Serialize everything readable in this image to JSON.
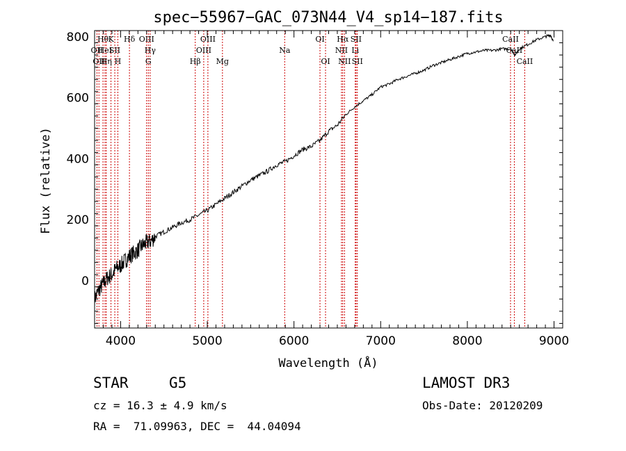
{
  "chart_data": {
    "type": "line",
    "title": "spec−55967−GAC_073N44_V4_sp14−187.fits",
    "xlabel": "Wavelength (Å)",
    "ylabel": "Flux (relative)",
    "xlim": [
      3700,
      9100
    ],
    "ylim": [
      -155,
      820
    ],
    "x_ticks": [
      4000,
      5000,
      6000,
      7000,
      8000,
      9000
    ],
    "y_ticks": [
      0,
      200,
      400,
      600,
      800
    ],
    "series": [
      {
        "name": "flux",
        "x": [
          3700,
          3750,
          3800,
          3850,
          3900,
          3950,
          4000,
          4050,
          4100,
          4150,
          4200,
          4250,
          4300,
          4350,
          4400,
          4500,
          4600,
          4700,
          4800,
          4900,
          5000,
          5100,
          5200,
          5300,
          5400,
          5500,
          5600,
          5700,
          5800,
          5900,
          6000,
          6100,
          6200,
          6300,
          6400,
          6500,
          6600,
          6700,
          6800,
          6900,
          7000,
          7100,
          7200,
          7300,
          7400,
          7500,
          7600,
          7700,
          7800,
          7900,
          8000,
          8100,
          8200,
          8300,
          8400,
          8500,
          8550,
          8600,
          8700,
          8800,
          8900,
          8960,
          8990
        ],
        "y": [
          -60,
          -30,
          -10,
          10,
          20,
          40,
          50,
          65,
          80,
          90,
          100,
          115,
          125,
          130,
          145,
          160,
          175,
          190,
          200,
          215,
          230,
          250,
          270,
          290,
          310,
          330,
          345,
          360,
          380,
          390,
          410,
          430,
          440,
          460,
          490,
          510,
          545,
          570,
          590,
          610,
          635,
          645,
          660,
          670,
          680,
          690,
          705,
          715,
          725,
          735,
          745,
          750,
          755,
          755,
          760,
          760,
          740,
          760,
          775,
          790,
          800,
          805,
          785
        ]
      }
    ],
    "line_markers": [
      {
        "wavelength": 3727,
        "label": "OII",
        "row": 2
      },
      {
        "wavelength": 3750,
        "label": "OII",
        "row": 3
      },
      {
        "wavelength": 3797,
        "label": "Hθ",
        "row": 1
      },
      {
        "wavelength": 3820,
        "label": "HeI",
        "row": 2
      },
      {
        "wavelength": 3835,
        "label": "Hη",
        "row": 3
      },
      {
        "wavelength": 3889,
        "label": "K",
        "row": 1
      },
      {
        "wavelength": 3933,
        "label": "SII",
        "row": 2
      },
      {
        "wavelength": 3968,
        "label": "H",
        "row": 3
      },
      {
        "wavelength": 4102,
        "label": "Hδ",
        "row": 1
      },
      {
        "wavelength": 4300,
        "label": "OIII",
        "row": 1
      },
      {
        "wavelength": 4320,
        "label": "G",
        "row": 3
      },
      {
        "wavelength": 4341,
        "label": "Hγ",
        "row": 2
      },
      {
        "wavelength": 4861,
        "label": "Hβ",
        "row": 3
      },
      {
        "wavelength": 4959,
        "label": "OIII",
        "row": 2
      },
      {
        "wavelength": 5007,
        "label": "OIII",
        "row": 1
      },
      {
        "wavelength": 5175,
        "label": "Mg",
        "row": 3
      },
      {
        "wavelength": 5893,
        "label": "Na",
        "row": 2
      },
      {
        "wavelength": 6300,
        "label": "OI",
        "row": 1
      },
      {
        "wavelength": 6364,
        "label": "OI",
        "row": 3
      },
      {
        "wavelength": 6548,
        "label": "NII",
        "row": 2
      },
      {
        "wavelength": 6563,
        "label": "Hα",
        "row": 1
      },
      {
        "wavelength": 6583,
        "label": "NII",
        "row": 3
      },
      {
        "wavelength": 6707,
        "label": "Li",
        "row": 2
      },
      {
        "wavelength": 6716,
        "label": "SII",
        "row": 1
      },
      {
        "wavelength": 6731,
        "label": "SII",
        "row": 3
      },
      {
        "wavelength": 8498,
        "label": "CaII",
        "row": 1
      },
      {
        "wavelength": 8542,
        "label": "CaII",
        "row": 2
      },
      {
        "wavelength": 8662,
        "label": "CaII",
        "row": 3
      }
    ]
  },
  "info": {
    "class": "STAR",
    "subclass": "G5",
    "survey": "LAMOST DR3",
    "redshift": "cz = 16.3 ± 4.9 km/s",
    "obs_date": "Obs-Date: 20120209",
    "coords": "RA =  71.09963, DEC =  44.04094"
  },
  "colors": {
    "marker_line": "#cc0000",
    "spectrum": "#000000",
    "axes": "#000000"
  }
}
